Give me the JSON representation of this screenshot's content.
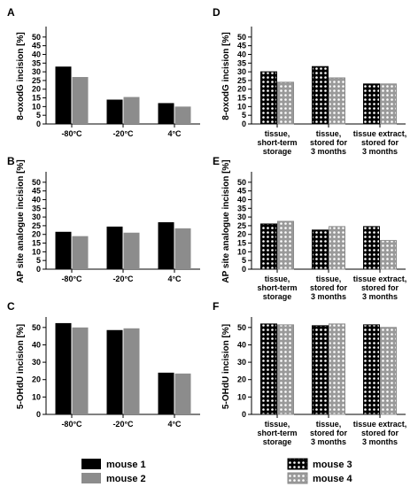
{
  "colors": {
    "mouse1": "#000000",
    "mouse2": "#8c8c8c",
    "mouse3_fill": "#000000",
    "mouse3_dot": "#ffffff",
    "mouse4_fill": "#9a9a9a",
    "mouse4_dot": "#ffffff",
    "axis": "#000000"
  },
  "legend": {
    "mouse1": "mouse 1",
    "mouse2": "mouse 2",
    "mouse3": "mouse 3",
    "mouse4": "mouse 4"
  },
  "chart_data": [
    {
      "panel": "A",
      "type": "bar",
      "ylabel": "8-oxodG incision [%]",
      "ylim": [
        0,
        55
      ],
      "yticks": [
        0,
        5,
        10,
        15,
        20,
        25,
        30,
        35,
        40,
        45,
        50
      ],
      "categories": [
        "-80°C",
        "-20°C",
        "4°C"
      ],
      "series": [
        {
          "name": "mouse 1",
          "values": [
            33,
            14,
            12
          ]
        },
        {
          "name": "mouse 2",
          "values": [
            27,
            15.5,
            10
          ]
        }
      ]
    },
    {
      "panel": "B",
      "type": "bar",
      "ylabel": "AP site analogue incision [%]",
      "ylim": [
        0,
        55
      ],
      "yticks": [
        0,
        5,
        10,
        15,
        20,
        25,
        30,
        35,
        40,
        45,
        50
      ],
      "categories": [
        "-80°C",
        "-20°C",
        "4°C"
      ],
      "series": [
        {
          "name": "mouse 1",
          "values": [
            21.5,
            24.5,
            27
          ]
        },
        {
          "name": "mouse 2",
          "values": [
            19,
            21,
            23.5
          ]
        }
      ]
    },
    {
      "panel": "C",
      "type": "bar",
      "ylabel": "5-OHdU incision [%]",
      "ylim": [
        0,
        55
      ],
      "yticks": [
        0,
        10,
        20,
        30,
        40,
        50
      ],
      "categories": [
        "-80°C",
        "-20°C",
        "4°C"
      ],
      "series": [
        {
          "name": "mouse 1",
          "values": [
            52.5,
            48.5,
            24
          ]
        },
        {
          "name": "mouse 2",
          "values": [
            50,
            49.5,
            23.5
          ]
        }
      ]
    },
    {
      "panel": "D",
      "type": "bar",
      "ylabel": "8-oxodG incision [%]",
      "ylim": [
        0,
        55
      ],
      "yticks": [
        0,
        5,
        10,
        15,
        20,
        25,
        30,
        35,
        40,
        45,
        50
      ],
      "categories": [
        [
          "tissue,",
          "short-term",
          "storage"
        ],
        [
          "tissue,",
          "stored for",
          "3 months"
        ],
        [
          "tissue extract,",
          "stored for",
          "3 months"
        ]
      ],
      "series": [
        {
          "name": "mouse 3",
          "values": [
            30,
            33,
            23
          ]
        },
        {
          "name": "mouse 4",
          "values": [
            24,
            26.5,
            23
          ]
        }
      ]
    },
    {
      "panel": "E",
      "type": "bar",
      "ylabel": "AP site analogue incision [%]",
      "ylim": [
        0,
        55
      ],
      "yticks": [
        0,
        5,
        10,
        15,
        20,
        25,
        30,
        35,
        40,
        45,
        50
      ],
      "categories": [
        [
          "tissue,",
          "short-term",
          "storage"
        ],
        [
          "tissue,",
          "stored for",
          "3 months"
        ],
        [
          "tissue extract,",
          "stored for",
          "3 months"
        ]
      ],
      "series": [
        {
          "name": "mouse 3",
          "values": [
            26,
            22.5,
            24.5
          ]
        },
        {
          "name": "mouse 4",
          "values": [
            27.5,
            24.5,
            16.5
          ]
        }
      ]
    },
    {
      "panel": "F",
      "type": "bar",
      "ylabel": "5-OHdU incision [%]",
      "ylim": [
        0,
        55
      ],
      "yticks": [
        0,
        10,
        20,
        30,
        40,
        50
      ],
      "categories": [
        [
          "tissue,",
          "short-term",
          "storage"
        ],
        [
          "tissue,",
          "stored for",
          "3 months"
        ],
        [
          "tissue extract,",
          "stored for",
          "3 months"
        ]
      ],
      "series": [
        {
          "name": "mouse 3",
          "values": [
            52,
            51,
            51.5
          ]
        },
        {
          "name": "mouse 4",
          "values": [
            51.5,
            52,
            50
          ]
        }
      ]
    }
  ]
}
